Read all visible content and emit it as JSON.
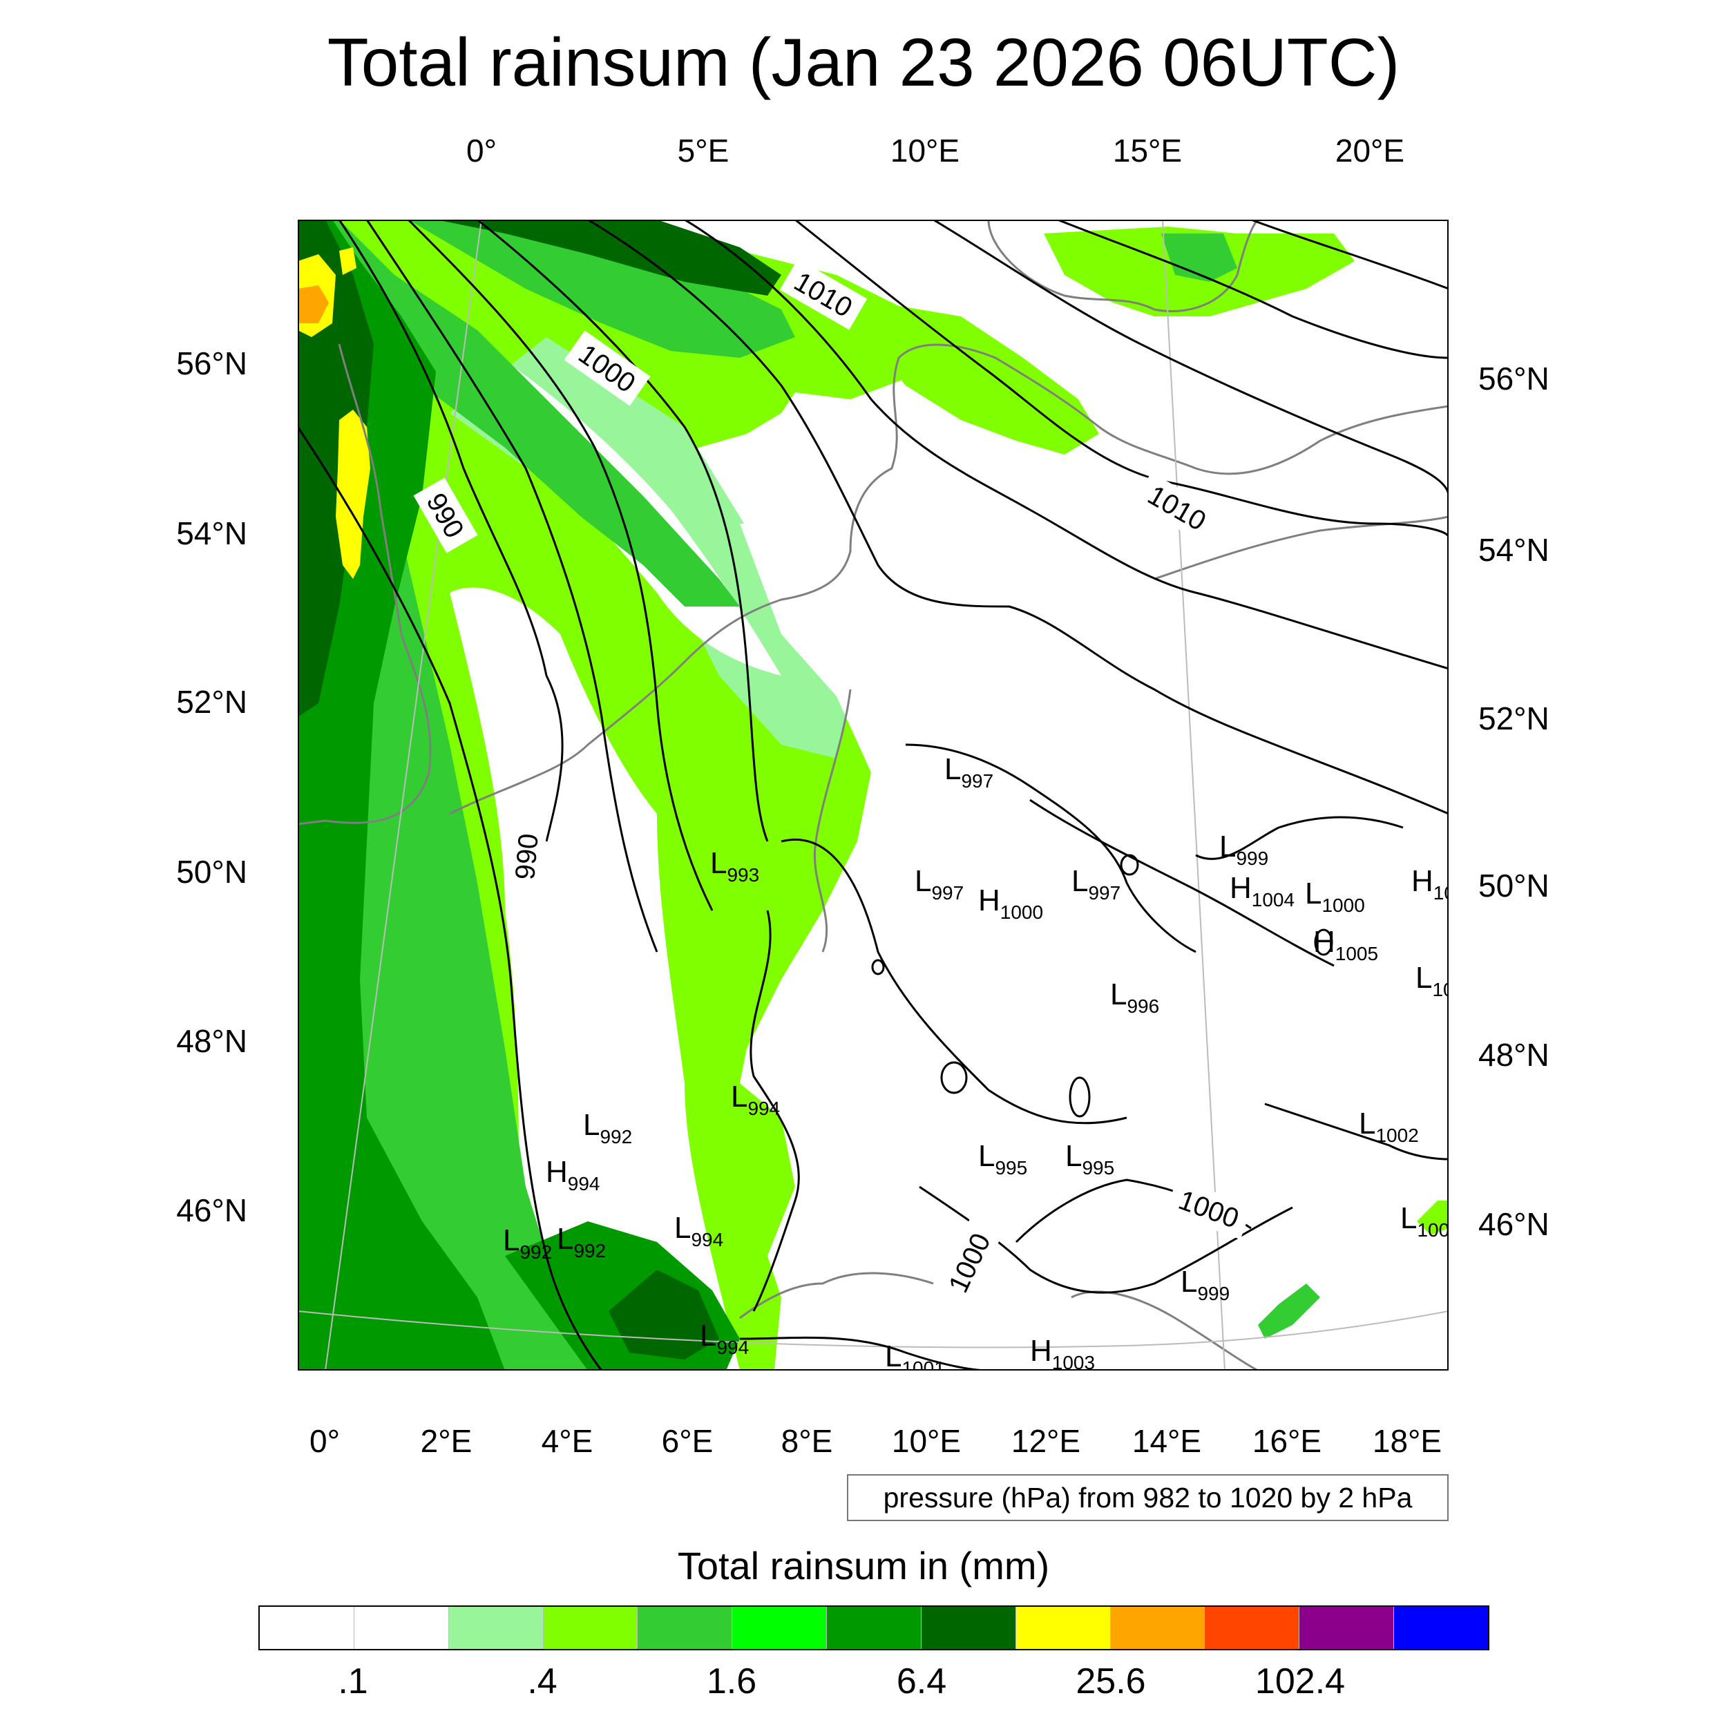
{
  "title": "Total rainsum (Jan 23 2026 06UTC)",
  "top_lon_ticks": [
    "0°",
    "5°E",
    "10°E",
    "15°E",
    "20°E"
  ],
  "bottom_lon_ticks": [
    "0°",
    "2°E",
    "4°E",
    "6°E",
    "8°E",
    "10°E",
    "12°E",
    "14°E",
    "16°E",
    "18°E"
  ],
  "left_lat_ticks": [
    "56°N",
    "54°N",
    "52°N",
    "50°N",
    "48°N",
    "46°N"
  ],
  "right_lat_ticks": [
    "56°N",
    "54°N",
    "52°N",
    "50°N",
    "48°N",
    "46°N"
  ],
  "contour_note": "pressure (hPa) from 982 to 1020 by 2 hPa",
  "colorbar": {
    "title": "Total rainsum in (mm)",
    "colors": [
      "#ffffff",
      "#ffffff",
      "#99f599",
      "#80ff00",
      "#33cc33",
      "#00ff00",
      "#009900",
      "#006600",
      "#ffff00",
      "#ffa500",
      "#ff4500",
      "#8b008b",
      "#0000ff"
    ],
    "labels": [
      ".1",
      ".4",
      "1.6",
      "6.4",
      "25.6",
      "102.4"
    ]
  },
  "contour_labels": [
    "1010",
    "1000",
    "990",
    "990",
    "1010",
    "1000",
    "1000"
  ],
  "pressure_centers": [
    {
      "letter": "L",
      "value": "997"
    },
    {
      "letter": "L",
      "value": "999"
    },
    {
      "letter": "L",
      "value": "993"
    },
    {
      "letter": "L",
      "value": "997"
    },
    {
      "letter": "H",
      "value": "1000"
    },
    {
      "letter": "L",
      "value": "997"
    },
    {
      "letter": "H",
      "value": "1004"
    },
    {
      "letter": "L",
      "value": "1000"
    },
    {
      "letter": "H",
      "value": "10"
    },
    {
      "letter": "H",
      "value": "1005"
    },
    {
      "letter": "L",
      "value": "10"
    },
    {
      "letter": "L",
      "value": "996"
    },
    {
      "letter": "L",
      "value": "994"
    },
    {
      "letter": "L",
      "value": "992"
    },
    {
      "letter": "H",
      "value": "994"
    },
    {
      "letter": "L",
      "value": "1002"
    },
    {
      "letter": "L",
      "value": "995"
    },
    {
      "letter": "L",
      "value": "995"
    },
    {
      "letter": "L",
      "value": "992"
    },
    {
      "letter": "L",
      "value": "992"
    },
    {
      "letter": "L",
      "value": "994"
    },
    {
      "letter": "L",
      "value": "100"
    },
    {
      "letter": "L",
      "value": "999"
    },
    {
      "letter": "L",
      "value": "994"
    },
    {
      "letter": "L",
      "value": "1001"
    },
    {
      "letter": "H",
      "value": "1003"
    }
  ]
}
